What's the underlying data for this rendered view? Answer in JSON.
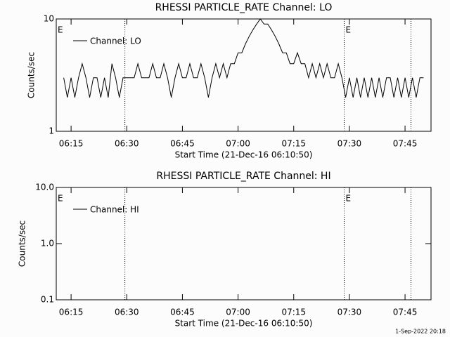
{
  "chart_data": [
    {
      "type": "line",
      "title": "RHESSI PARTICLE_RATE Channel: LO",
      "xlabel": "Start Time (21-Dec-16 06:10:50)",
      "ylabel": "Counts/sec",
      "log_y": true,
      "ylim": [
        1,
        10
      ],
      "yticks": [
        1,
        10
      ],
      "xlim": [
        371,
        472
      ],
      "xticks": [
        {
          "value": 375,
          "label": "06:15"
        },
        {
          "value": 390,
          "label": "06:30"
        },
        {
          "value": 405,
          "label": "06:45"
        },
        {
          "value": 420,
          "label": "07:00"
        },
        {
          "value": 435,
          "label": "07:15"
        },
        {
          "value": 450,
          "label": "07:30"
        },
        {
          "value": 465,
          "label": "07:45"
        }
      ],
      "event_lines": [
        389.5,
        448.6,
        466.6
      ],
      "event_labels": [
        {
          "x": 371,
          "label": "E"
        },
        {
          "x": 448.6,
          "label": "E"
        }
      ],
      "series": [
        {
          "name": "Channel: LO",
          "color": "#000000",
          "x": [
            373,
            374,
            375,
            376,
            377,
            378,
            379,
            380,
            381,
            382,
            383,
            384,
            385,
            386,
            387,
            388,
            389,
            390,
            391,
            392,
            393,
            394,
            395,
            396,
            397,
            398,
            399,
            400,
            401,
            402,
            403,
            404,
            405,
            406,
            407,
            408,
            409,
            410,
            411,
            412,
            413,
            414,
            415,
            416,
            417,
            418,
            419,
            420,
            421,
            422,
            423,
            424,
            425,
            426,
            427,
            428,
            429,
            430,
            431,
            432,
            433,
            434,
            435,
            436,
            437,
            438,
            439,
            440,
            441,
            442,
            443,
            444,
            445,
            446,
            447,
            448,
            449,
            450,
            451,
            452,
            453,
            454,
            455,
            456,
            457,
            458,
            459,
            460,
            461,
            462,
            463,
            464,
            465,
            466,
            467,
            468,
            469,
            470
          ],
          "values": [
            3,
            2,
            3,
            2,
            3,
            4,
            3,
            2,
            3,
            3,
            2,
            3,
            2,
            4,
            3,
            2,
            3,
            3,
            3,
            3,
            4,
            3,
            3,
            3,
            4,
            3,
            3,
            4,
            3,
            2,
            3,
            4,
            3,
            3,
            4,
            3,
            3,
            4,
            3,
            2,
            3,
            4,
            3,
            4,
            3,
            4,
            4,
            5,
            5,
            6,
            7,
            8,
            9,
            10,
            9,
            9,
            8,
            7,
            6,
            5,
            5,
            4,
            4,
            5,
            4,
            4,
            3,
            4,
            3,
            4,
            3,
            4,
            3,
            3,
            4,
            3,
            2,
            3,
            2,
            3,
            2,
            3,
            2,
            3,
            2,
            3,
            2,
            3,
            3,
            2,
            3,
            2,
            3,
            2,
            3,
            2,
            3,
            3
          ]
        }
      ]
    },
    {
      "type": "line",
      "title": "RHESSI PARTICLE_RATE Channel: HI",
      "xlabel": "Start Time (21-Dec-16 06:10:50)",
      "ylabel": "Counts/sec",
      "log_y": true,
      "ylim": [
        0.1,
        10
      ],
      "yticks": [
        {
          "value": 0.1,
          "label": "0.1"
        },
        {
          "value": 1,
          "label": "1.0"
        },
        {
          "value": 10,
          "label": "10.0"
        }
      ],
      "xlim": [
        371,
        472
      ],
      "xticks": [
        {
          "value": 375,
          "label": "06:15"
        },
        {
          "value": 390,
          "label": "06:30"
        },
        {
          "value": 405,
          "label": "06:45"
        },
        {
          "value": 420,
          "label": "07:00"
        },
        {
          "value": 435,
          "label": "07:15"
        },
        {
          "value": 450,
          "label": "07:30"
        },
        {
          "value": 465,
          "label": "07:45"
        }
      ],
      "event_lines": [
        389.5,
        448.6,
        466.6
      ],
      "event_labels": [
        {
          "x": 371,
          "label": "E"
        },
        {
          "x": 448.6,
          "label": "E"
        }
      ],
      "series": [
        {
          "name": "Channel: HI",
          "color": "#000000",
          "x": [],
          "values": []
        }
      ]
    }
  ],
  "footer": "1-Sep-2022 20:18"
}
